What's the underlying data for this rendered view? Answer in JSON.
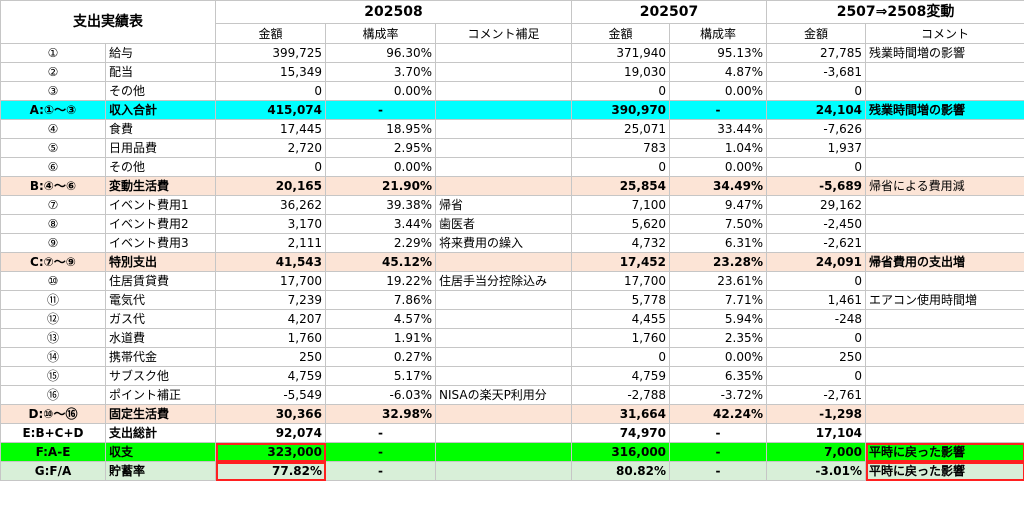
{
  "title": "支出実績表",
  "periods": [
    "202508",
    "202507",
    "2507⇒2508変動"
  ],
  "columns": {
    "amount": "金額",
    "ratio": "構成率",
    "comment_note": "コメント補足",
    "comment": "コメント"
  },
  "rows": [
    {
      "type": "item",
      "no": "①",
      "name": "給与",
      "a8": "399,725",
      "r8": "96.30%",
      "n8": "",
      "a7": "371,940",
      "r7": "95.13%",
      "d": "27,785",
      "cm": "残業時間増の影響"
    },
    {
      "type": "item",
      "no": "②",
      "name": "配当",
      "a8": "15,349",
      "r8": "3.70%",
      "n8": "",
      "a7": "19,030",
      "r7": "4.87%",
      "d": "-3,681",
      "cm": ""
    },
    {
      "type": "item",
      "no": "③",
      "name": "その他",
      "a8": "0",
      "r8": "0.00%",
      "n8": "",
      "a7": "0",
      "r7": "0.00%",
      "d": "0",
      "cm": ""
    },
    {
      "type": "cyan",
      "no": "A:①〜③",
      "name": "収入合計",
      "a8": "415,074",
      "r8": "-",
      "n8": "",
      "a7": "390,970",
      "r7": "-",
      "d": "24,104",
      "cm": "残業時間増の影響"
    },
    {
      "type": "item",
      "no": "④",
      "name": "食費",
      "a8": "17,445",
      "r8": "18.95%",
      "n8": "",
      "a7": "25,071",
      "r7": "33.44%",
      "d": "-7,626",
      "cm": ""
    },
    {
      "type": "item",
      "no": "⑤",
      "name": "日用品費",
      "a8": "2,720",
      "r8": "2.95%",
      "n8": "",
      "a7": "783",
      "r7": "1.04%",
      "d": "1,937",
      "cm": ""
    },
    {
      "type": "item",
      "no": "⑥",
      "name": "その他",
      "a8": "0",
      "r8": "0.00%",
      "n8": "",
      "a7": "0",
      "r7": "0.00%",
      "d": "0",
      "cm": ""
    },
    {
      "type": "peach",
      "no": "B:④〜⑥",
      "name": "変動生活費",
      "a8": "20,165",
      "r8": "21.90%",
      "n8": "",
      "a7": "25,854",
      "r7": "34.49%",
      "d": "-5,689",
      "cm": "帰省による費用減",
      "cmBold": false
    },
    {
      "type": "item",
      "no": "⑦",
      "name": "イベント費用1",
      "a8": "36,262",
      "r8": "39.38%",
      "n8": "帰省",
      "a7": "7,100",
      "r7": "9.47%",
      "d": "29,162",
      "cm": ""
    },
    {
      "type": "item",
      "no": "⑧",
      "name": "イベント費用2",
      "a8": "3,170",
      "r8": "3.44%",
      "n8": "歯医者",
      "a7": "5,620",
      "r7": "7.50%",
      "d": "-2,450",
      "cm": ""
    },
    {
      "type": "item",
      "no": "⑨",
      "name": "イベント費用3",
      "a8": "2,111",
      "r8": "2.29%",
      "n8": "将来費用の繰入",
      "a7": "4,732",
      "r7": "6.31%",
      "d": "-2,621",
      "cm": ""
    },
    {
      "type": "peach",
      "no": "C:⑦〜⑨",
      "name": "特別支出",
      "a8": "41,543",
      "r8": "45.12%",
      "n8": "",
      "a7": "17,452",
      "r7": "23.28%",
      "d": "24,091",
      "cm": "帰省費用の支出増"
    },
    {
      "type": "item",
      "no": "⑩",
      "name": "住居賃貸費",
      "a8": "17,700",
      "r8": "19.22%",
      "n8": "住居手当分控除込み",
      "a7": "17,700",
      "r7": "23.61%",
      "d": "0",
      "cm": ""
    },
    {
      "type": "item",
      "no": "⑪",
      "name": "電気代",
      "a8": "7,239",
      "r8": "7.86%",
      "n8": "",
      "a7": "5,778",
      "r7": "7.71%",
      "d": "1,461",
      "cm": "エアコン使用時間増"
    },
    {
      "type": "item",
      "no": "⑫",
      "name": "ガス代",
      "a8": "4,207",
      "r8": "4.57%",
      "n8": "",
      "a7": "4,455",
      "r7": "5.94%",
      "d": "-248",
      "cm": ""
    },
    {
      "type": "item",
      "no": "⑬",
      "name": "水道費",
      "a8": "1,760",
      "r8": "1.91%",
      "n8": "",
      "a7": "1,760",
      "r7": "2.35%",
      "d": "0",
      "cm": ""
    },
    {
      "type": "item",
      "no": "⑭",
      "name": "携帯代金",
      "a8": "250",
      "r8": "0.27%",
      "n8": "",
      "a7": "0",
      "r7": "0.00%",
      "d": "250",
      "cm": ""
    },
    {
      "type": "item",
      "no": "⑮",
      "name": "サブスク他",
      "a8": "4,759",
      "r8": "5.17%",
      "n8": "",
      "a7": "4,759",
      "r7": "6.35%",
      "d": "0",
      "cm": ""
    },
    {
      "type": "item",
      "no": "⑯",
      "name": "ポイント補正",
      "a8": "-5,549",
      "r8": "-6.03%",
      "n8": "NISAの楽天P利用分",
      "a7": "-2,788",
      "r7": "-3.72%",
      "d": "-2,761",
      "cm": ""
    },
    {
      "type": "peach",
      "no": "D:⑩〜⑯",
      "name": "固定生活費",
      "a8": "30,366",
      "r8": "32.98%",
      "n8": "",
      "a7": "31,664",
      "r7": "42.24%",
      "d": "-1,298",
      "cm": ""
    },
    {
      "type": "white",
      "no": "E:B+C+D",
      "name": "支出総計",
      "a8": "92,074",
      "r8": "-",
      "n8": "",
      "a7": "74,970",
      "r7": "-",
      "d": "17,104",
      "cm": ""
    },
    {
      "type": "green",
      "no": "F:A-E",
      "name": "収支",
      "a8": "323,000",
      "r8": "-",
      "n8": "",
      "a7": "316,000",
      "r7": "-",
      "d": "7,000",
      "cm": "平時に戻った影響"
    },
    {
      "type": "lgreen",
      "no": "G:F/A",
      "name": "貯蓄率",
      "a8": "77.82%",
      "r8": "-",
      "n8": "",
      "a7": "80.82%",
      "r7": "-",
      "d": "-3.01%",
      "cm": "平時に戻った影響"
    }
  ]
}
